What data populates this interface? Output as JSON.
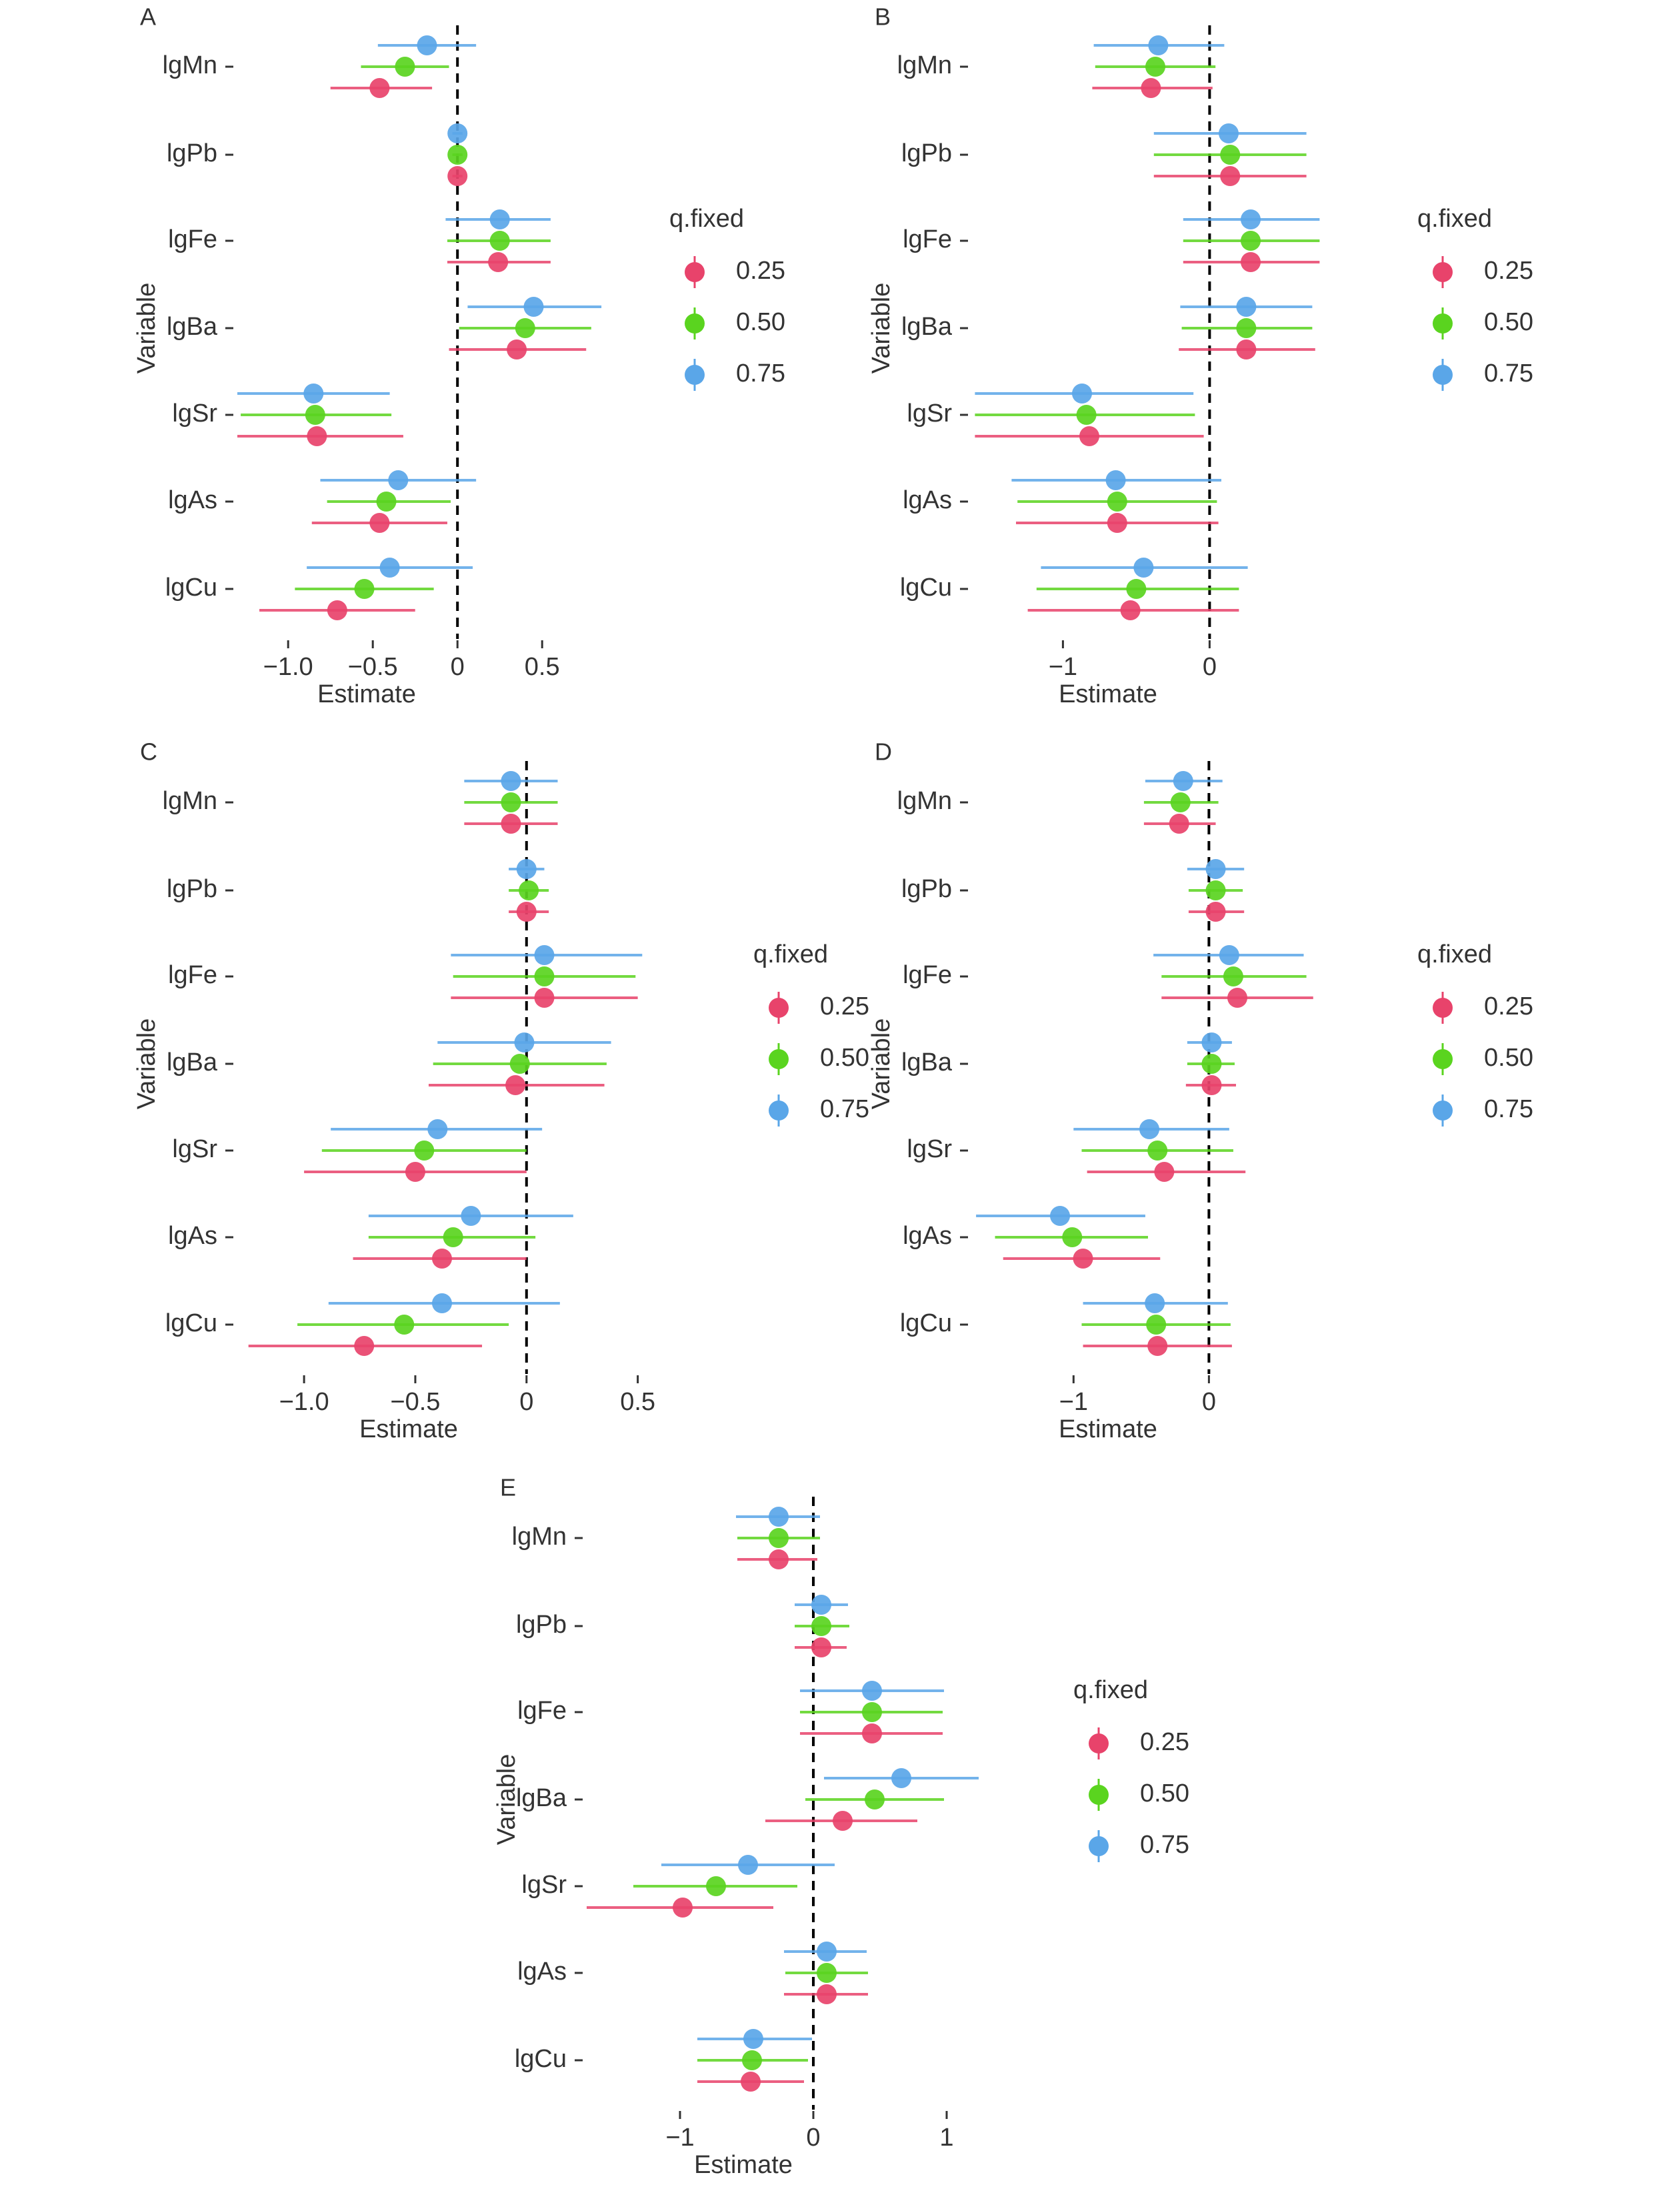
{
  "figure": {
    "colors": {
      "0.25": "#e8436b",
      "0.50": "#5ad41f",
      "0.75": "#5aa6e8",
      "zero_line": "#000000",
      "text": "#333333"
    },
    "legend_title": "q.fixed",
    "legend_items": [
      "0.25",
      "0.50",
      "0.75"
    ],
    "ylabel": "Variable",
    "xlabel": "Estimate"
  },
  "chart_data": [
    {
      "panel": "A",
      "type": "scatter",
      "categories": [
        "lgMn",
        "lgPb",
        "lgFe",
        "lgBa",
        "lgSr",
        "lgAs",
        "lgCu"
      ],
      "xlim": [
        -1.3,
        0.7
      ],
      "xticks": [
        -1.0,
        -0.5,
        0,
        0.5
      ],
      "xtick_labels": [
        "−1.0",
        "−0.5",
        "0",
        "0.5"
      ],
      "xlabel": "Estimate",
      "ylabel": "Variable",
      "legend_title": "q.fixed",
      "legend_position": "right",
      "series": [
        {
          "name": "0.25",
          "estimate": [
            -0.46,
            0.0,
            0.24,
            0.35,
            -0.83,
            -0.46,
            -0.71
          ],
          "lower": [
            -0.75,
            -0.03,
            -0.06,
            -0.05,
            -1.3,
            -0.86,
            -1.17
          ],
          "upper": [
            -0.15,
            0.03,
            0.55,
            0.76,
            -0.32,
            -0.06,
            -0.25
          ]
        },
        {
          "name": "0.50",
          "estimate": [
            -0.31,
            0.0,
            0.25,
            0.4,
            -0.84,
            -0.42,
            -0.55
          ],
          "lower": [
            -0.57,
            -0.03,
            -0.06,
            0.01,
            -1.28,
            -0.77,
            -0.96
          ],
          "upper": [
            -0.05,
            0.03,
            0.55,
            0.79,
            -0.39,
            -0.04,
            -0.14
          ]
        },
        {
          "name": "0.75",
          "estimate": [
            -0.18,
            0.0,
            0.25,
            0.45,
            -0.85,
            -0.35,
            -0.4
          ],
          "lower": [
            -0.47,
            -0.03,
            -0.07,
            0.06,
            -1.3,
            -0.81,
            -0.89
          ],
          "upper": [
            0.11,
            0.03,
            0.55,
            0.85,
            -0.4,
            0.11,
            0.09
          ]
        }
      ]
    },
    {
      "panel": "B",
      "type": "scatter",
      "categories": [
        "lgMn",
        "lgPb",
        "lgFe",
        "lgBa",
        "lgSr",
        "lgAs",
        "lgCu"
      ],
      "xlim": [
        -1.62,
        0.78
      ],
      "xticks": [
        -1,
        0
      ],
      "xtick_labels": [
        "−1",
        "0"
      ],
      "xlabel": "Estimate",
      "ylabel": "Variable",
      "legend_title": "q.fixed",
      "legend_position": "right",
      "series": [
        {
          "name": "0.25",
          "estimate": [
            -0.4,
            0.14,
            0.28,
            0.25,
            -0.82,
            -0.63,
            -0.54
          ],
          "lower": [
            -0.8,
            -0.38,
            -0.18,
            -0.21,
            -1.6,
            -1.32,
            -1.24
          ],
          "upper": [
            0.02,
            0.66,
            0.75,
            0.72,
            -0.04,
            0.06,
            0.2
          ]
        },
        {
          "name": "0.50",
          "estimate": [
            -0.37,
            0.14,
            0.28,
            0.25,
            -0.84,
            -0.63,
            -0.5
          ],
          "lower": [
            -0.78,
            -0.38,
            -0.18,
            -0.19,
            -1.6,
            -1.31,
            -1.18
          ],
          "upper": [
            0.04,
            0.66,
            0.75,
            0.7,
            -0.1,
            0.05,
            0.2
          ]
        },
        {
          "name": "0.75",
          "estimate": [
            -0.35,
            0.13,
            0.28,
            0.25,
            -0.87,
            -0.64,
            -0.45
          ],
          "lower": [
            -0.79,
            -0.38,
            -0.18,
            -0.2,
            -1.6,
            -1.35,
            -1.15
          ],
          "upper": [
            0.1,
            0.66,
            0.75,
            0.7,
            -0.11,
            0.08,
            0.26
          ]
        }
      ]
    },
    {
      "panel": "C",
      "type": "scatter",
      "categories": [
        "lgMn",
        "lgPb",
        "lgFe",
        "lgBa",
        "lgSr",
        "lgAs",
        "lgCu"
      ],
      "xlim": [
        -1.3,
        0.6
      ],
      "xticks": [
        -1.0,
        -0.5,
        0,
        0.5
      ],
      "xtick_labels": [
        "−1.0",
        "−0.5",
        "0",
        "0.5"
      ],
      "xlabel": "Estimate",
      "ylabel": "Variable",
      "legend_title": "q.fixed",
      "legend_position": "right",
      "series": [
        {
          "name": "0.25",
          "estimate": [
            -0.07,
            0.0,
            0.08,
            -0.05,
            -0.5,
            -0.38,
            -0.73
          ],
          "lower": [
            -0.28,
            -0.08,
            -0.34,
            -0.44,
            -1.0,
            -0.78,
            -1.25
          ],
          "upper": [
            0.14,
            0.1,
            0.5,
            0.35,
            0.0,
            0.0,
            -0.2
          ]
        },
        {
          "name": "0.50",
          "estimate": [
            -0.07,
            0.01,
            0.08,
            -0.03,
            -0.46,
            -0.33,
            -0.55
          ],
          "lower": [
            -0.28,
            -0.08,
            -0.33,
            -0.42,
            -0.92,
            -0.71,
            -1.03
          ],
          "upper": [
            0.14,
            0.1,
            0.49,
            0.36,
            0.0,
            0.04,
            -0.08
          ]
        },
        {
          "name": "0.75",
          "estimate": [
            -0.07,
            0.0,
            0.08,
            -0.01,
            -0.4,
            -0.25,
            -0.38
          ],
          "lower": [
            -0.28,
            -0.08,
            -0.34,
            -0.4,
            -0.88,
            -0.71,
            -0.89
          ],
          "upper": [
            0.14,
            0.08,
            0.52,
            0.38,
            0.07,
            0.21,
            0.15
          ]
        }
      ]
    },
    {
      "panel": "D",
      "type": "scatter",
      "categories": [
        "lgMn",
        "lgPb",
        "lgFe",
        "lgBa",
        "lgSr",
        "lgAs",
        "lgCu"
      ],
      "xlim": [
        -1.75,
        0.85
      ],
      "xticks": [
        -1,
        0
      ],
      "xtick_labels": [
        "−1",
        "0"
      ],
      "xlabel": "Estimate",
      "ylabel": "Variable",
      "legend_title": "q.fixed",
      "legend_position": "right",
      "series": [
        {
          "name": "0.25",
          "estimate": [
            -0.22,
            0.05,
            0.21,
            0.02,
            -0.33,
            -0.93,
            -0.38
          ],
          "lower": [
            -0.48,
            -0.15,
            -0.35,
            -0.17,
            -0.9,
            -1.52,
            -0.93
          ],
          "upper": [
            0.05,
            0.26,
            0.77,
            0.2,
            0.27,
            -0.36,
            0.17
          ]
        },
        {
          "name": "0.50",
          "estimate": [
            -0.21,
            0.05,
            0.18,
            0.02,
            -0.38,
            -1.01,
            -0.39
          ],
          "lower": [
            -0.48,
            -0.15,
            -0.35,
            -0.16,
            -0.94,
            -1.58,
            -0.94
          ],
          "upper": [
            0.07,
            0.25,
            0.72,
            0.19,
            0.18,
            -0.45,
            0.16
          ]
        },
        {
          "name": "0.75",
          "estimate": [
            -0.19,
            0.05,
            0.15,
            0.02,
            -0.44,
            -1.1,
            -0.4
          ],
          "lower": [
            -0.47,
            -0.16,
            -0.41,
            -0.16,
            -1.0,
            -1.72,
            -0.93
          ],
          "upper": [
            0.1,
            0.26,
            0.7,
            0.17,
            0.15,
            -0.47,
            0.14
          ]
        }
      ]
    },
    {
      "panel": "E",
      "type": "scatter",
      "categories": [
        "lgMn",
        "lgPb",
        "lgFe",
        "lgBa",
        "lgSr",
        "lgAs",
        "lgCu"
      ],
      "xlim": [
        -1.7,
        1.25
      ],
      "xticks": [
        -1,
        0,
        1
      ],
      "xtick_labels": [
        "−1",
        "0",
        "1"
      ],
      "xlabel": "Estimate",
      "ylabel": "Variable",
      "legend_title": "q.fixed",
      "legend_position": "right",
      "series": [
        {
          "name": "0.25",
          "estimate": [
            -0.26,
            0.06,
            0.44,
            0.22,
            -0.98,
            0.1,
            -0.47
          ],
          "lower": [
            -0.57,
            -0.14,
            -0.1,
            -0.36,
            -1.7,
            -0.22,
            -0.87
          ],
          "upper": [
            0.03,
            0.25,
            0.97,
            0.78,
            -0.3,
            0.41,
            -0.07
          ]
        },
        {
          "name": "0.50",
          "estimate": [
            -0.26,
            0.06,
            0.44,
            0.46,
            -0.73,
            0.1,
            -0.46
          ],
          "lower": [
            -0.57,
            -0.14,
            -0.1,
            -0.06,
            -1.35,
            -0.21,
            -0.87
          ],
          "upper": [
            0.05,
            0.27,
            0.97,
            0.98,
            -0.12,
            0.41,
            -0.04
          ]
        },
        {
          "name": "0.75",
          "estimate": [
            -0.26,
            0.06,
            0.44,
            0.66,
            -0.49,
            0.1,
            -0.45
          ],
          "lower": [
            -0.58,
            -0.14,
            -0.1,
            0.08,
            -1.14,
            -0.22,
            -0.87
          ],
          "upper": [
            0.05,
            0.26,
            0.98,
            1.24,
            0.16,
            0.4,
            -0.01
          ]
        }
      ]
    }
  ]
}
